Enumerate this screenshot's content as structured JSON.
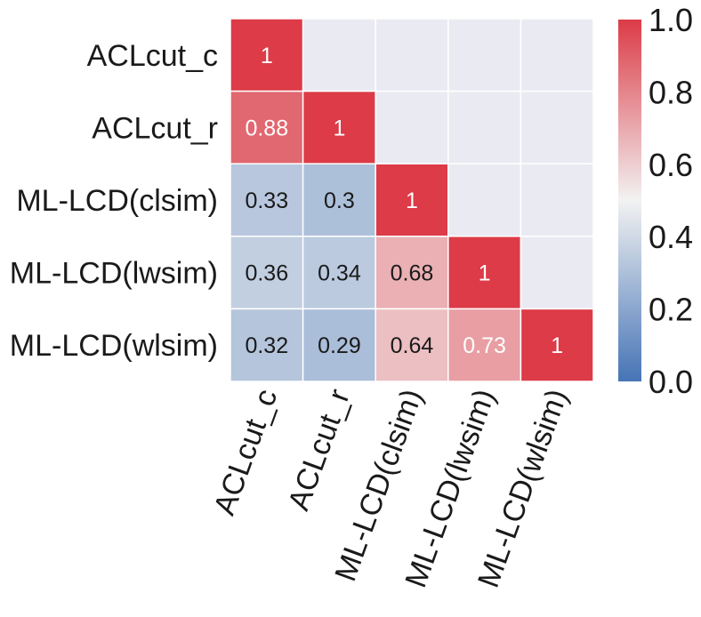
{
  "chart_data": {
    "type": "heatmap",
    "title": "",
    "xlabel": "",
    "ylabel": "",
    "mask": "upper-triangle",
    "row_labels": [
      "ACLcut_c",
      "ACLcut_r",
      "ML-LCD(clsim)",
      "ML-LCD(lwsim)",
      "ML-LCD(wlsim)"
    ],
    "col_labels": [
      "ACLcut_c",
      "ACLcut_r",
      "ML-LCD(clsim)",
      "ML-LCD(lwsim)",
      "ML-LCD(wlsim)"
    ],
    "values": [
      [
        1,
        null,
        null,
        null,
        null
      ],
      [
        0.88,
        1,
        null,
        null,
        null
      ],
      [
        0.33,
        0.3,
        1,
        null,
        null
      ],
      [
        0.36,
        0.34,
        0.68,
        1,
        null
      ],
      [
        0.32,
        0.29,
        0.64,
        0.73,
        1
      ]
    ],
    "annotation_labels": [
      [
        "1",
        "",
        "",
        "",
        ""
      ],
      [
        "0.88",
        "1",
        "",
        "",
        ""
      ],
      [
        "0.33",
        "0.3",
        "1",
        "",
        ""
      ],
      [
        "0.36",
        "0.34",
        "0.68",
        "1",
        ""
      ],
      [
        "0.32",
        "0.29",
        "0.64",
        "0.73",
        "1"
      ]
    ],
    "colorbar": {
      "range": [
        0.0,
        1.0
      ],
      "ticks": [
        0.0,
        0.2,
        0.4,
        0.6,
        0.8,
        1.0
      ],
      "tick_labels": [
        "0.0",
        "0.2",
        "0.4",
        "0.6",
        "0.8",
        "1.0"
      ],
      "colors": {
        "low": "#4674b6",
        "mid": "#f2f2f2",
        "high": "#dc3b47"
      }
    },
    "background_color": "#eaeaf2",
    "text_colors": {
      "on_dark": "#ffffff",
      "on_light": "#1a1a1a",
      "labels": "#1a1a1a"
    }
  }
}
